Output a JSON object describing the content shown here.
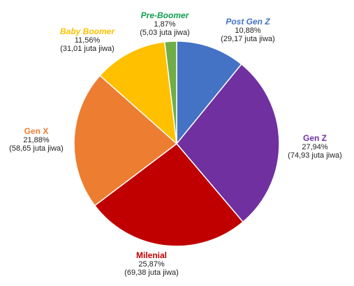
{
  "chart_data": {
    "type": "pie",
    "title": "",
    "start_angle_deg": 0,
    "direction": "clockwise",
    "slices": [
      {
        "name": "Post Gen Z",
        "percent_label": "10,88%",
        "value": 10.88,
        "absolute_label": "(29,17 juta jiwa)",
        "color": "#4472C4",
        "italic": true
      },
      {
        "name": "Gen Z",
        "percent_label": "27,94%",
        "value": 27.94,
        "absolute_label": "(74,93 juta jiwa)",
        "color": "#7030A0",
        "italic": false
      },
      {
        "name": "Milenial",
        "percent_label": "25,87%",
        "value": 25.87,
        "absolute_label": "(69,38 juta jiwa)",
        "color": "#C00000",
        "italic": false
      },
      {
        "name": "Gen X",
        "percent_label": "21,88%",
        "value": 21.88,
        "absolute_label": "(58,65 juta jiwa)",
        "color": "#ED7D31",
        "italic": false
      },
      {
        "name": "Baby Boomer",
        "percent_label": "11,56%",
        "value": 11.56,
        "absolute_label": "(31,01 juta jiwa)",
        "color": "#FFC000",
        "italic": true
      },
      {
        "name": "Pre-Boomer",
        "percent_label": "1,87%",
        "value": 1.87,
        "absolute_label": "(5,03 juta jiwa)",
        "color": "#70AD47",
        "italic": true
      }
    ],
    "name_colors": {
      "Post Gen Z": "#4472C4",
      "Gen Z": "#7030A0",
      "Milenial": "#C00000",
      "Gen X": "#ED7D31",
      "Baby Boomer": "#FFC000",
      "Pre-Boomer": "#0E9F4E"
    }
  }
}
